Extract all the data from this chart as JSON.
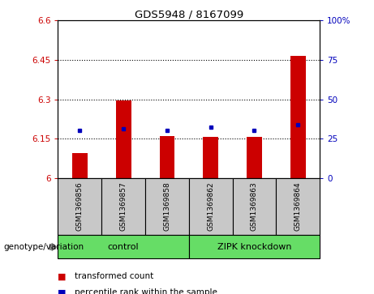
{
  "title": "GDS5948 / 8167099",
  "samples": [
    "GSM1369856",
    "GSM1369857",
    "GSM1369858",
    "GSM1369862",
    "GSM1369863",
    "GSM1369864"
  ],
  "red_values": [
    6.095,
    6.295,
    6.16,
    6.155,
    6.155,
    6.465
  ],
  "blue_values_pct": [
    30,
    31,
    30,
    32,
    30,
    34
  ],
  "ylim_left": [
    6.0,
    6.6
  ],
  "ylim_right": [
    0,
    100
  ],
  "yticks_left": [
    6.0,
    6.15,
    6.3,
    6.45,
    6.6
  ],
  "yticks_right": [
    0,
    25,
    50,
    75,
    100
  ],
  "ytick_labels_left": [
    "6",
    "6.15",
    "6.3",
    "6.45",
    "6.6"
  ],
  "ytick_labels_right": [
    "0",
    "25",
    "50",
    "75",
    "100%"
  ],
  "hlines": [
    6.15,
    6.3,
    6.45
  ],
  "groups": [
    {
      "label": "control",
      "indices": [
        0,
        1,
        2
      ],
      "color": "#66DD66"
    },
    {
      "label": "ZIPK knockdown",
      "indices": [
        3,
        4,
        5
      ],
      "color": "#66DD66"
    }
  ],
  "group_bg_color": "#C8C8C8",
  "plot_bg_color": "#FFFFFF",
  "red_color": "#CC0000",
  "blue_color": "#0000BB",
  "left_axis_color": "#CC0000",
  "right_axis_color": "#0000BB",
  "bar_width": 0.35,
  "legend_red": "transformed count",
  "legend_blue": "percentile rank within the sample",
  "genotype_label": "genotype/variation"
}
